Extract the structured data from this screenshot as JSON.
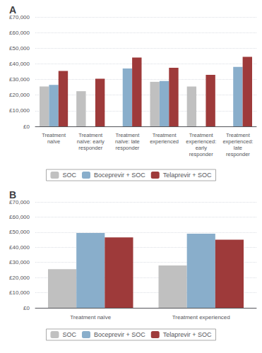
{
  "chart_data": [
    {
      "type": "bar",
      "title": "A",
      "categories": [
        "Treatment\nnaïve",
        "Treatment\nnaïve: early\nresponder",
        "Treatment\nnaïve: late\nresponder",
        "Treatment\nexperienced",
        "Treatment\nexperienced:\nearly\nresponder",
        "Treatment\nexperienced:\nlate\nresponder"
      ],
      "series": [
        {
          "name": "SOC",
          "color": "#c0c0c0",
          "values": [
            25500,
            22500,
            null,
            28500,
            25500,
            null
          ]
        },
        {
          "name": "Boceprevir + SOC",
          "color": "#89aecb",
          "values": [
            26500,
            null,
            37000,
            29000,
            null,
            38000
          ]
        },
        {
          "name": "Telaprevir + SOC",
          "color": "#9e3a3a",
          "values": [
            35500,
            30500,
            44000,
            37500,
            33000,
            44500
          ]
        }
      ],
      "ylim": [
        0,
        70000
      ],
      "yticks": [
        {
          "value": 0,
          "label": "£0"
        },
        {
          "value": 10000,
          "label": "£10,000"
        },
        {
          "value": 20000,
          "label": "£20,000"
        },
        {
          "value": 30000,
          "label": "£30,000"
        },
        {
          "value": 40000,
          "label": "£40,000"
        },
        {
          "value": 50000,
          "label": "£50,000"
        },
        {
          "value": 60000,
          "label": "£60,000"
        },
        {
          "value": 70000,
          "label": "£70,000"
        }
      ],
      "grid": true,
      "legend": "bottom"
    },
    {
      "type": "bar",
      "title": "B",
      "categories": [
        "Treatment naïve",
        "Treatment experienced"
      ],
      "series": [
        {
          "name": "SOC",
          "color": "#c0c0c0",
          "values": [
            25500,
            28000
          ]
        },
        {
          "name": "Boceprevir + SOC",
          "color": "#89aecb",
          "values": [
            49500,
            49000
          ]
        },
        {
          "name": "Telaprevir + SOC",
          "color": "#9e3a3a",
          "values": [
            46500,
            45000
          ]
        }
      ],
      "ylim": [
        0,
        70000
      ],
      "yticks": [
        {
          "value": 0,
          "label": "£0"
        },
        {
          "value": 10000,
          "label": "£10,000"
        },
        {
          "value": 20000,
          "label": "£20,000"
        },
        {
          "value": 30000,
          "label": "£30,000"
        },
        {
          "value": 40000,
          "label": "£40,000"
        },
        {
          "value": 50000,
          "label": "£50,000"
        },
        {
          "value": 60000,
          "label": "£60,000"
        },
        {
          "value": 70000,
          "label": "£70,000"
        }
      ],
      "grid": true,
      "legend": "bottom"
    }
  ]
}
